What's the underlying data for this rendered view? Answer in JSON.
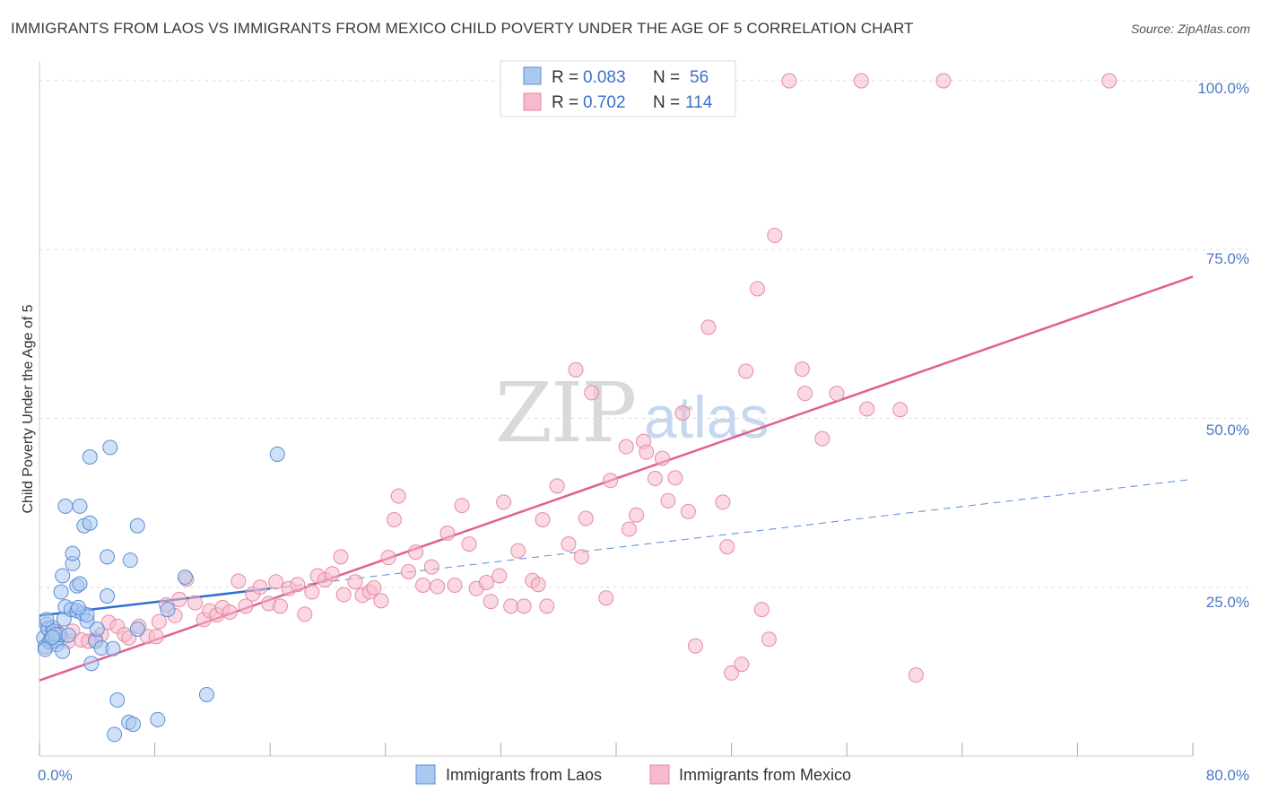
{
  "header": {
    "title": "IMMIGRANTS FROM LAOS VS IMMIGRANTS FROM MEXICO CHILD POVERTY UNDER THE AGE OF 5 CORRELATION CHART",
    "source": "Source: ZipAtlas.com"
  },
  "watermark": {
    "zip": "ZIP",
    "atlas": "atlas"
  },
  "colors": {
    "laos_fill": "#aac8f0",
    "laos_stroke": "#5b8ed6",
    "laos_line": "#2f6fd0",
    "mexico_fill": "#f7b9cb",
    "mexico_stroke": "#e58aa5",
    "mexico_line": "#e06090",
    "grid": "#dddddd",
    "tick_label": "#4a78c4"
  },
  "legend": {
    "rows": [
      {
        "r_label": "R =",
        "r_value": "0.083",
        "n_label": "N =",
        "n_value": "56"
      },
      {
        "r_label": "R =",
        "r_value": "0.702",
        "n_label": "N =",
        "n_value": "114"
      }
    ]
  },
  "bottom_legend": [
    "Immigrants from Laos",
    "Immigrants from Mexico"
  ],
  "chart_data": {
    "type": "scatter",
    "title": "IMMIGRANTS FROM LAOS VS IMMIGRANTS FROM MEXICO CHILD POVERTY UNDER THE AGE OF 5 CORRELATION CHART",
    "xlabel": "",
    "ylabel": "Child Poverty Under the Age of 5",
    "xlim": [
      0,
      80
    ],
    "ylim": [
      0,
      102
    ],
    "x_tick_labels": [
      "0.0%",
      "80.0%"
    ],
    "y_ticks": [
      25,
      50,
      75,
      100
    ],
    "y_tick_labels": [
      "25.0%",
      "50.0%",
      "75.0%",
      "100.0%"
    ],
    "grid": true,
    "series": [
      {
        "name": "Immigrants from Laos",
        "r": 0.083,
        "n": 56,
        "trend": {
          "x": [
            0,
            16
          ],
          "y": [
            20.8,
            24.8
          ]
        },
        "trend_dashed": {
          "x": [
            16,
            80
          ],
          "y": [
            24.8,
            41.0
          ]
        },
        "points": [
          [
            0.3,
            17.5
          ],
          [
            0.4,
            16.2
          ],
          [
            0.5,
            19.5
          ],
          [
            0.6,
            18.8
          ],
          [
            0.7,
            16.9
          ],
          [
            0.8,
            17.4
          ],
          [
            0.9,
            19.0
          ],
          [
            1.0,
            18.5
          ],
          [
            1.1,
            17.0
          ],
          [
            1.2,
            16.5
          ],
          [
            0.5,
            20.2
          ],
          [
            1.4,
            18.0
          ],
          [
            1.6,
            15.5
          ],
          [
            1.7,
            20.3
          ],
          [
            1.5,
            24.3
          ],
          [
            1.6,
            26.7
          ],
          [
            1.8,
            22.1
          ],
          [
            1.8,
            37.0
          ],
          [
            2.2,
            21.7
          ],
          [
            2.3,
            28.5
          ],
          [
            2.3,
            30.0
          ],
          [
            2.6,
            25.2
          ],
          [
            2.6,
            21.5
          ],
          [
            2.8,
            37.0
          ],
          [
            2.8,
            25.5
          ],
          [
            3.0,
            21.1
          ],
          [
            3.1,
            34.1
          ],
          [
            3.3,
            20.0
          ],
          [
            3.3,
            20.9
          ],
          [
            3.5,
            34.5
          ],
          [
            3.5,
            44.3
          ],
          [
            3.6,
            13.7
          ],
          [
            3.9,
            17.0
          ],
          [
            4.0,
            18.8
          ],
          [
            4.3,
            16.0
          ],
          [
            4.7,
            29.5
          ],
          [
            4.7,
            23.7
          ],
          [
            4.9,
            45.7
          ],
          [
            5.1,
            15.9
          ],
          [
            5.4,
            8.3
          ],
          [
            5.2,
            3.2
          ],
          [
            6.2,
            5.0
          ],
          [
            6.3,
            29.0
          ],
          [
            6.5,
            4.7
          ],
          [
            6.8,
            34.1
          ],
          [
            6.8,
            18.8
          ],
          [
            8.2,
            5.4
          ],
          [
            8.9,
            21.7
          ],
          [
            10.1,
            26.5
          ],
          [
            11.6,
            9.1
          ],
          [
            16.5,
            44.7
          ],
          [
            1.1,
            18.0
          ],
          [
            0.9,
            17.6
          ],
          [
            2.0,
            17.9
          ],
          [
            0.4,
            15.8
          ],
          [
            2.7,
            22.0
          ]
        ]
      },
      {
        "name": "Immigrants from Mexico",
        "r": 0.702,
        "n": 114,
        "trend": {
          "x": [
            0,
            80
          ],
          "y": [
            11.2,
            71.0
          ]
        },
        "points": [
          [
            0.6,
            19.0
          ],
          [
            0.8,
            16.9
          ],
          [
            1.3,
            18.2
          ],
          [
            1.5,
            17.3
          ],
          [
            2.0,
            17.0
          ],
          [
            2.3,
            18.5
          ],
          [
            2.9,
            17.2
          ],
          [
            3.4,
            17.0
          ],
          [
            3.9,
            17.3
          ],
          [
            4.3,
            18.0
          ],
          [
            4.8,
            19.8
          ],
          [
            5.4,
            19.2
          ],
          [
            5.9,
            18.0
          ],
          [
            6.2,
            17.5
          ],
          [
            6.9,
            19.2
          ],
          [
            7.5,
            17.7
          ],
          [
            8.1,
            17.7
          ],
          [
            8.3,
            19.9
          ],
          [
            8.8,
            22.4
          ],
          [
            9.4,
            20.8
          ],
          [
            9.7,
            23.2
          ],
          [
            10.2,
            26.2
          ],
          [
            10.8,
            22.7
          ],
          [
            11.4,
            20.2
          ],
          [
            11.8,
            21.5
          ],
          [
            12.3,
            20.9
          ],
          [
            12.7,
            22.0
          ],
          [
            13.2,
            21.3
          ],
          [
            13.8,
            25.9
          ],
          [
            14.3,
            22.2
          ],
          [
            14.8,
            24.0
          ],
          [
            15.3,
            25.0
          ],
          [
            15.9,
            22.6
          ],
          [
            16.4,
            25.8
          ],
          [
            16.7,
            22.2
          ],
          [
            17.3,
            24.8
          ],
          [
            17.9,
            25.4
          ],
          [
            18.4,
            21.0
          ],
          [
            18.9,
            24.3
          ],
          [
            19.3,
            26.7
          ],
          [
            19.8,
            26.1
          ],
          [
            20.3,
            27.0
          ],
          [
            20.9,
            29.5
          ],
          [
            21.1,
            23.9
          ],
          [
            21.9,
            25.8
          ],
          [
            22.4,
            23.8
          ],
          [
            22.9,
            24.3
          ],
          [
            23.2,
            24.9
          ],
          [
            23.7,
            23.0
          ],
          [
            24.2,
            29.4
          ],
          [
            24.6,
            35.0
          ],
          [
            24.9,
            38.5
          ],
          [
            25.6,
            27.3
          ],
          [
            26.1,
            30.2
          ],
          [
            26.6,
            25.3
          ],
          [
            27.2,
            28.0
          ],
          [
            27.6,
            25.1
          ],
          [
            28.3,
            33.0
          ],
          [
            28.8,
            25.3
          ],
          [
            29.3,
            37.1
          ],
          [
            29.8,
            31.4
          ],
          [
            30.3,
            24.8
          ],
          [
            31.0,
            25.7
          ],
          [
            31.3,
            22.9
          ],
          [
            31.9,
            26.7
          ],
          [
            32.2,
            37.6
          ],
          [
            32.7,
            22.2
          ],
          [
            33.2,
            30.4
          ],
          [
            33.6,
            22.2
          ],
          [
            34.2,
            26.0
          ],
          [
            34.6,
            25.4
          ],
          [
            34.9,
            35.0
          ],
          [
            35.2,
            22.2
          ],
          [
            35.9,
            40.0
          ],
          [
            36.7,
            31.4
          ],
          [
            37.2,
            57.2
          ],
          [
            37.6,
            29.5
          ],
          [
            37.9,
            35.2
          ],
          [
            38.3,
            53.8
          ],
          [
            39.3,
            23.4
          ],
          [
            39.6,
            40.8
          ],
          [
            40.7,
            45.8
          ],
          [
            40.9,
            33.6
          ],
          [
            41.4,
            35.7
          ],
          [
            41.9,
            46.6
          ],
          [
            42.1,
            45.0
          ],
          [
            42.7,
            41.1
          ],
          [
            43.2,
            44.1
          ],
          [
            43.6,
            37.8
          ],
          [
            44.1,
            41.2
          ],
          [
            44.6,
            50.8
          ],
          [
            45.0,
            36.2
          ],
          [
            45.5,
            16.3
          ],
          [
            46.4,
            63.5
          ],
          [
            47.4,
            37.6
          ],
          [
            47.7,
            31.0
          ],
          [
            48.0,
            12.3
          ],
          [
            48.7,
            13.6
          ],
          [
            49.0,
            57.0
          ],
          [
            49.8,
            69.2
          ],
          [
            50.1,
            21.7
          ],
          [
            50.6,
            17.3
          ],
          [
            51.0,
            77.1
          ],
          [
            52.9,
            57.3
          ],
          [
            53.1,
            53.7
          ],
          [
            54.3,
            47.0
          ],
          [
            55.3,
            53.7
          ],
          [
            57.4,
            51.4
          ],
          [
            59.7,
            51.3
          ],
          [
            60.8,
            12.0
          ],
          [
            52.0,
            100.0
          ],
          [
            57.0,
            100.0
          ],
          [
            62.7,
            100.0
          ],
          [
            74.2,
            100.0
          ]
        ]
      }
    ]
  }
}
